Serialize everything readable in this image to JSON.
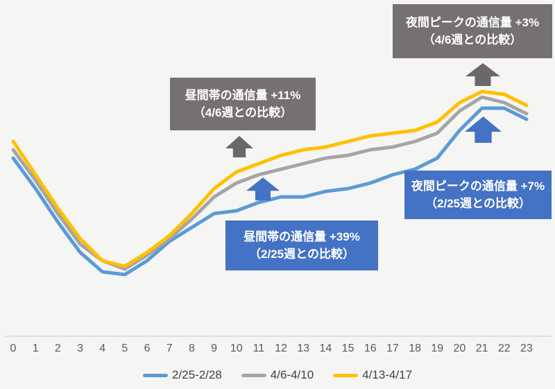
{
  "chart_data": {
    "type": "line",
    "hours": [
      0,
      1,
      2,
      3,
      4,
      5,
      6,
      7,
      8,
      9,
      10,
      11,
      12,
      13,
      14,
      15,
      16,
      17,
      18,
      19,
      20,
      21,
      22,
      23
    ],
    "x_tick_labels": [
      "0",
      "1",
      "2",
      "3",
      "4",
      "5",
      "6",
      "7",
      "8",
      "9",
      "10",
      "11",
      "12",
      "13",
      "14",
      "15",
      "16",
      "17",
      "18",
      "19",
      "20",
      "21",
      "22",
      "23"
    ],
    "series": [
      {
        "name": "2/25-2/28",
        "color": "#5B9BD5",
        "values": [
          63,
          52,
          40,
          29,
          22,
          21,
          26,
          33,
          38,
          43,
          44,
          47,
          49,
          49,
          51,
          52,
          54,
          57,
          59,
          63,
          73,
          81,
          81,
          77
        ]
      },
      {
        "name": "4/6-4/10",
        "color": "#A5A5A5",
        "values": [
          66,
          55,
          43,
          32,
          26,
          23,
          28,
          34,
          41,
          49,
          54,
          57,
          59,
          61,
          63,
          64,
          66,
          67,
          69,
          72,
          80,
          85,
          83,
          79
        ]
      },
      {
        "name": "4/13-4/17",
        "color": "#FFC000",
        "values": [
          69,
          57,
          45,
          34,
          26,
          24,
          29,
          35,
          43,
          52,
          58,
          61,
          64,
          66,
          67,
          69,
          71,
          72,
          73,
          76,
          83,
          87,
          86,
          82
        ]
      }
    ],
    "ylim": [
      0,
      100
    ],
    "y_axis_visible": false,
    "grid": false,
    "legend_position": "bottom",
    "note": "relative hourly traffic volume, no y-axis shown"
  },
  "annotations": {
    "night_vs46": {
      "line1": "夜間ピークの通信量 +3%",
      "line2": "（4/6週との比較）"
    },
    "daytime_vs46": {
      "line1": "昼間帯の通信量 +11%",
      "line2": "（4/6週との比較）"
    },
    "daytime_vs225": {
      "line1": "昼間帯の通信量 +39%",
      "line2": "（2/25週との比較）"
    },
    "night_vs225": {
      "line1": "夜間ピークの通信量 +7%",
      "line2": "（2/25週との比較）"
    }
  },
  "legend": {
    "items": [
      {
        "label": "2/25-2/28",
        "color": "#5B9BD5"
      },
      {
        "label": "4/6-4/10",
        "color": "#A5A5A5"
      },
      {
        "label": "4/13-4/17",
        "color": "#FFC000"
      }
    ]
  },
  "colors": {
    "background": "#F5F5F3",
    "axis_line": "#D9D9D9",
    "tick_label": "#595959",
    "legend_label": "#404040",
    "box_gray": "#757171",
    "box_blue": "#4472C4",
    "arrow_gray": "#6B6867",
    "arrow_blue": "#4472C4",
    "annotation_text": "#FFFFFF"
  }
}
